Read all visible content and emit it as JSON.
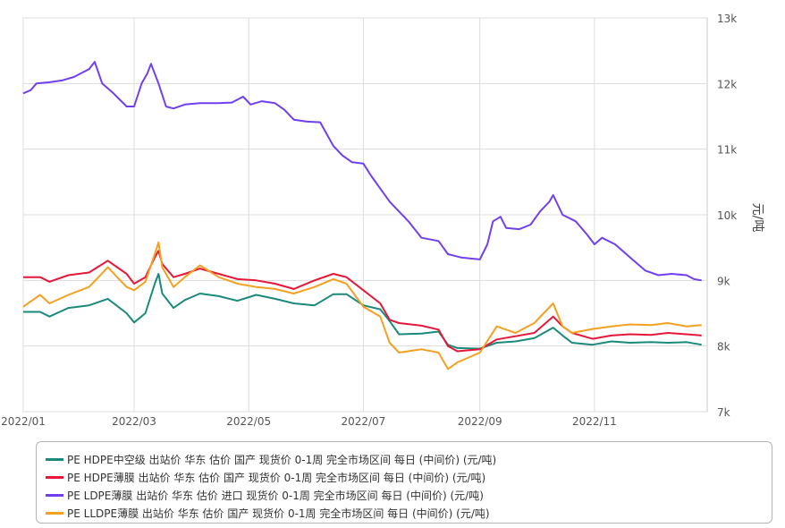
{
  "chart_data": {
    "type": "line",
    "ylabel": "元/吨",
    "ylim": [
      7000,
      13000
    ],
    "y_ticks": [
      {
        "value": 7000,
        "label": "7k"
      },
      {
        "value": 8000,
        "label": "8k"
      },
      {
        "value": 9000,
        "label": "9k"
      },
      {
        "value": 10000,
        "label": "10k"
      },
      {
        "value": 11000,
        "label": "11k"
      },
      {
        "value": 12000,
        "label": "12k"
      },
      {
        "value": 13000,
        "label": "13k"
      }
    ],
    "x_range": [
      "2022-01-01",
      "2022-12-31"
    ],
    "x_ticks": [
      {
        "date": "2022-01-01",
        "label": "2022/01"
      },
      {
        "date": "2022-03-01",
        "label": "2022/03"
      },
      {
        "date": "2022-05-01",
        "label": "2022/05"
      },
      {
        "date": "2022-07-01",
        "label": "2022/07"
      },
      {
        "date": "2022-09-01",
        "label": "2022/09"
      },
      {
        "date": "2022-11-01",
        "label": "2022/11"
      }
    ],
    "grid": true,
    "legend_position": "bottom",
    "series": [
      {
        "name": "PE HDPE中空级 出站价 华东 估价 国产 现货价 0-1周 完全市场区间 每日 (中间价) (元/吨)",
        "color": "#1a8a7a",
        "points": [
          [
            "2022-01-01",
            8520
          ],
          [
            "2022-01-10",
            8520
          ],
          [
            "2022-01-15",
            8450
          ],
          [
            "2022-01-25",
            8580
          ],
          [
            "2022-02-05",
            8620
          ],
          [
            "2022-02-15",
            8720
          ],
          [
            "2022-02-25",
            8500
          ],
          [
            "2022-03-01",
            8360
          ],
          [
            "2022-03-07",
            8500
          ],
          [
            "2022-03-12",
            8950
          ],
          [
            "2022-03-14",
            9100
          ],
          [
            "2022-03-16",
            8800
          ],
          [
            "2022-03-22",
            8580
          ],
          [
            "2022-03-28",
            8700
          ],
          [
            "2022-04-05",
            8800
          ],
          [
            "2022-04-15",
            8760
          ],
          [
            "2022-04-25",
            8690
          ],
          [
            "2022-05-05",
            8780
          ],
          [
            "2022-05-15",
            8720
          ],
          [
            "2022-05-25",
            8650
          ],
          [
            "2022-06-05",
            8620
          ],
          [
            "2022-06-15",
            8790
          ],
          [
            "2022-06-22",
            8790
          ],
          [
            "2022-07-01",
            8620
          ],
          [
            "2022-07-10",
            8560
          ],
          [
            "2022-07-15",
            8380
          ],
          [
            "2022-07-20",
            8180
          ],
          [
            "2022-08-01",
            8190
          ],
          [
            "2022-08-10",
            8220
          ],
          [
            "2022-08-15",
            8020
          ],
          [
            "2022-08-20",
            7970
          ],
          [
            "2022-09-01",
            7960
          ],
          [
            "2022-09-10",
            8050
          ],
          [
            "2022-09-20",
            8070
          ],
          [
            "2022-09-30",
            8120
          ],
          [
            "2022-10-10",
            8280
          ],
          [
            "2022-10-15",
            8160
          ],
          [
            "2022-10-20",
            8050
          ],
          [
            "2022-10-31",
            8020
          ],
          [
            "2022-11-10",
            8070
          ],
          [
            "2022-11-20",
            8050
          ],
          [
            "2022-12-01",
            8060
          ],
          [
            "2022-12-10",
            8050
          ],
          [
            "2022-12-20",
            8060
          ],
          [
            "2022-12-28",
            8020
          ]
        ]
      },
      {
        "name": "PE HDPE薄膜 出站价 华东 估价 国产 现货价 0-1周 完全市场区间 每日 (中间价) (元/吨)",
        "color": "#e5183a",
        "points": [
          [
            "2022-01-01",
            9050
          ],
          [
            "2022-01-10",
            9050
          ],
          [
            "2022-01-15",
            8980
          ],
          [
            "2022-01-25",
            9080
          ],
          [
            "2022-02-05",
            9120
          ],
          [
            "2022-02-15",
            9300
          ],
          [
            "2022-02-25",
            9100
          ],
          [
            "2022-03-01",
            8950
          ],
          [
            "2022-03-07",
            9050
          ],
          [
            "2022-03-12",
            9350
          ],
          [
            "2022-03-14",
            9450
          ],
          [
            "2022-03-16",
            9250
          ],
          [
            "2022-03-22",
            9050
          ],
          [
            "2022-03-28",
            9100
          ],
          [
            "2022-04-05",
            9180
          ],
          [
            "2022-04-15",
            9100
          ],
          [
            "2022-04-25",
            9020
          ],
          [
            "2022-05-05",
            9000
          ],
          [
            "2022-05-15",
            8950
          ],
          [
            "2022-05-25",
            8870
          ],
          [
            "2022-06-05",
            9000
          ],
          [
            "2022-06-15",
            9100
          ],
          [
            "2022-06-22",
            9050
          ],
          [
            "2022-07-01",
            8850
          ],
          [
            "2022-07-10",
            8650
          ],
          [
            "2022-07-15",
            8400
          ],
          [
            "2022-07-20",
            8350
          ],
          [
            "2022-08-01",
            8310
          ],
          [
            "2022-08-10",
            8250
          ],
          [
            "2022-08-15",
            8000
          ],
          [
            "2022-08-20",
            7920
          ],
          [
            "2022-09-01",
            7950
          ],
          [
            "2022-09-10",
            8100
          ],
          [
            "2022-09-20",
            8150
          ],
          [
            "2022-09-30",
            8200
          ],
          [
            "2022-10-10",
            8450
          ],
          [
            "2022-10-15",
            8300
          ],
          [
            "2022-10-20",
            8200
          ],
          [
            "2022-10-31",
            8110
          ],
          [
            "2022-11-10",
            8160
          ],
          [
            "2022-11-20",
            8180
          ],
          [
            "2022-12-01",
            8170
          ],
          [
            "2022-12-10",
            8200
          ],
          [
            "2022-12-20",
            8180
          ],
          [
            "2022-12-28",
            8160
          ]
        ]
      },
      {
        "name": "PE LDPE薄膜 出站价 华东 估价 进口 现货价 0-1周 完全市场区间 每日 (中间价) (元/吨)",
        "color": "#7040f0",
        "points": [
          [
            "2022-01-01",
            11850
          ],
          [
            "2022-01-05",
            11900
          ],
          [
            "2022-01-08",
            12000
          ],
          [
            "2022-01-15",
            12020
          ],
          [
            "2022-01-22",
            12050
          ],
          [
            "2022-01-28",
            12100
          ],
          [
            "2022-02-05",
            12220
          ],
          [
            "2022-02-08",
            12330
          ],
          [
            "2022-02-12",
            12000
          ],
          [
            "2022-02-18",
            11850
          ],
          [
            "2022-02-25",
            11650
          ],
          [
            "2022-03-01",
            11650
          ],
          [
            "2022-03-05",
            12000
          ],
          [
            "2022-03-08",
            12150
          ],
          [
            "2022-03-10",
            12300
          ],
          [
            "2022-03-14",
            12000
          ],
          [
            "2022-03-18",
            11650
          ],
          [
            "2022-03-22",
            11620
          ],
          [
            "2022-03-28",
            11680
          ],
          [
            "2022-04-05",
            11700
          ],
          [
            "2022-04-15",
            11700
          ],
          [
            "2022-04-22",
            11710
          ],
          [
            "2022-04-28",
            11800
          ],
          [
            "2022-05-02",
            11680
          ],
          [
            "2022-05-08",
            11730
          ],
          [
            "2022-05-15",
            11700
          ],
          [
            "2022-05-20",
            11600
          ],
          [
            "2022-05-25",
            11450
          ],
          [
            "2022-06-01",
            11420
          ],
          [
            "2022-06-08",
            11410
          ],
          [
            "2022-06-15",
            11050
          ],
          [
            "2022-06-20",
            10900
          ],
          [
            "2022-06-25",
            10800
          ],
          [
            "2022-07-01",
            10780
          ],
          [
            "2022-07-05",
            10600
          ],
          [
            "2022-07-10",
            10400
          ],
          [
            "2022-07-15",
            10200
          ],
          [
            "2022-07-20",
            10050
          ],
          [
            "2022-07-25",
            9900
          ],
          [
            "2022-08-01",
            9650
          ],
          [
            "2022-08-10",
            9600
          ],
          [
            "2022-08-15",
            9400
          ],
          [
            "2022-08-22",
            9350
          ],
          [
            "2022-09-01",
            9320
          ],
          [
            "2022-09-05",
            9550
          ],
          [
            "2022-09-08",
            9900
          ],
          [
            "2022-09-12",
            9970
          ],
          [
            "2022-09-15",
            9800
          ],
          [
            "2022-09-22",
            9780
          ],
          [
            "2022-09-28",
            9850
          ],
          [
            "2022-10-03",
            10050
          ],
          [
            "2022-10-08",
            10200
          ],
          [
            "2022-10-10",
            10300
          ],
          [
            "2022-10-15",
            10000
          ],
          [
            "2022-10-22",
            9900
          ],
          [
            "2022-10-28",
            9700
          ],
          [
            "2022-11-01",
            9550
          ],
          [
            "2022-11-05",
            9650
          ],
          [
            "2022-11-12",
            9550
          ],
          [
            "2022-11-20",
            9350
          ],
          [
            "2022-11-28",
            9150
          ],
          [
            "2022-12-05",
            9080
          ],
          [
            "2022-12-12",
            9100
          ],
          [
            "2022-12-20",
            9080
          ],
          [
            "2022-12-24",
            9020
          ],
          [
            "2022-12-28",
            9000
          ]
        ]
      },
      {
        "name": "PE LLDPE薄膜 出站价 华东 估价 国产 现货价 0-1周 完全市场区间 每日 (中间价) (元/吨)",
        "color": "#f5a020",
        "points": [
          [
            "2022-01-01",
            8600
          ],
          [
            "2022-01-10",
            8780
          ],
          [
            "2022-01-15",
            8650
          ],
          [
            "2022-01-25",
            8780
          ],
          [
            "2022-02-05",
            8900
          ],
          [
            "2022-02-15",
            9200
          ],
          [
            "2022-02-25",
            8900
          ],
          [
            "2022-03-01",
            8850
          ],
          [
            "2022-03-07",
            8980
          ],
          [
            "2022-03-12",
            9400
          ],
          [
            "2022-03-14",
            9580
          ],
          [
            "2022-03-16",
            9200
          ],
          [
            "2022-03-22",
            8900
          ],
          [
            "2022-03-28",
            9050
          ],
          [
            "2022-04-05",
            9230
          ],
          [
            "2022-04-15",
            9050
          ],
          [
            "2022-04-25",
            8950
          ],
          [
            "2022-05-05",
            8900
          ],
          [
            "2022-05-15",
            8870
          ],
          [
            "2022-05-25",
            8800
          ],
          [
            "2022-06-05",
            8900
          ],
          [
            "2022-06-15",
            9020
          ],
          [
            "2022-06-22",
            8950
          ],
          [
            "2022-07-01",
            8600
          ],
          [
            "2022-07-10",
            8450
          ],
          [
            "2022-07-15",
            8050
          ],
          [
            "2022-07-20",
            7900
          ],
          [
            "2022-08-01",
            7950
          ],
          [
            "2022-08-10",
            7900
          ],
          [
            "2022-08-15",
            7650
          ],
          [
            "2022-08-20",
            7750
          ],
          [
            "2022-09-01",
            7900
          ],
          [
            "2022-09-10",
            8300
          ],
          [
            "2022-09-20",
            8200
          ],
          [
            "2022-09-30",
            8350
          ],
          [
            "2022-10-10",
            8650
          ],
          [
            "2022-10-15",
            8300
          ],
          [
            "2022-10-20",
            8200
          ],
          [
            "2022-10-31",
            8260
          ],
          [
            "2022-11-10",
            8300
          ],
          [
            "2022-11-20",
            8330
          ],
          [
            "2022-12-01",
            8320
          ],
          [
            "2022-12-10",
            8350
          ],
          [
            "2022-12-20",
            8300
          ],
          [
            "2022-12-28",
            8320
          ]
        ]
      }
    ]
  }
}
